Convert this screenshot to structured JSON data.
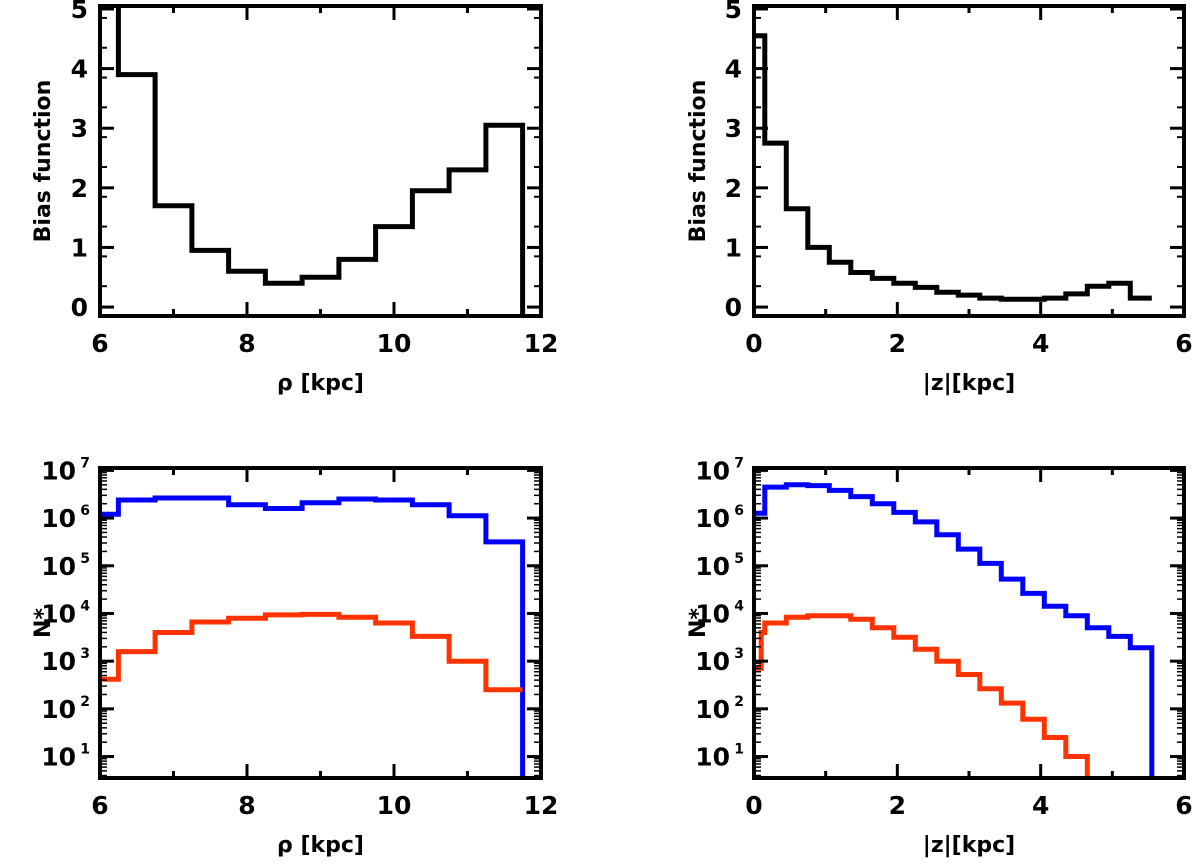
{
  "chart_data": [
    {
      "id": "panel-a",
      "type": "line",
      "style": "step",
      "xlabel": "ρ [kpc]",
      "ylabel": "Bias function",
      "xlim": [
        6,
        12
      ],
      "ylim": [
        -0.15,
        5.05
      ],
      "yscale": "linear",
      "xticks": [
        6,
        8,
        10,
        12
      ],
      "yticks": [
        0,
        1,
        2,
        3,
        4,
        5
      ],
      "series": [
        {
          "name": "bias",
          "color": "#000000",
          "edges": [
            6.25,
            6.75,
            7.25,
            7.75,
            8.25,
            8.75,
            9.25,
            9.75,
            10.25,
            10.75,
            11.25,
            11.75
          ],
          "values": [
            3.9,
            1.7,
            0.95,
            0.6,
            0.4,
            0.5,
            0.8,
            1.35,
            1.95,
            2.3,
            3.05
          ],
          "start": 5.05,
          "end": -0.15
        }
      ]
    },
    {
      "id": "panel-b",
      "type": "line",
      "style": "step",
      "xlabel": "|z|[kpc]",
      "ylabel": "Bias function",
      "xlim": [
        0,
        6
      ],
      "ylim": [
        -0.15,
        5.05
      ],
      "yscale": "linear",
      "xticks": [
        0,
        2,
        4,
        6
      ],
      "yticks": [
        0,
        1,
        2,
        3,
        4,
        5
      ],
      "series": [
        {
          "name": "bias",
          "color": "#000000",
          "edges": [
            0,
            0.15,
            0.45,
            0.75,
            1.05,
            1.35,
            1.65,
            1.95,
            2.25,
            2.55,
            2.85,
            3.15,
            3.45,
            3.75,
            4.05,
            4.35,
            4.65,
            4.95,
            5.25,
            5.55
          ],
          "values": [
            4.55,
            2.75,
            1.65,
            1.0,
            0.75,
            0.58,
            0.48,
            0.4,
            0.33,
            0.25,
            0.2,
            0.15,
            0.13,
            0.13,
            0.15,
            0.22,
            0.35,
            0.4,
            0.15
          ],
          "start": null,
          "end": null
        }
      ]
    },
    {
      "id": "panel-c",
      "type": "line",
      "style": "step",
      "xlabel": "ρ [kpc]",
      "ylabel": "N*",
      "xlim": [
        6,
        12
      ],
      "ylim_log10": [
        0.55,
        7.05
      ],
      "yscale": "log",
      "xticks": [
        6,
        8,
        10,
        12
      ],
      "yticks": [
        "10^7",
        "10^6",
        "10^5",
        "10^4",
        "10^3",
        "10^2",
        "10^1"
      ],
      "series": [
        {
          "name": "blue",
          "color": "#0000ff",
          "edges": [
            6,
            6.25,
            6.75,
            7.25,
            7.75,
            8.25,
            8.75,
            9.25,
            9.75,
            10.25,
            10.75,
            11.25,
            11.75
          ],
          "log_values": [
            6.08,
            6.38,
            6.42,
            6.42,
            6.28,
            6.2,
            6.32,
            6.4,
            6.38,
            6.28,
            6.05,
            5.5
          ],
          "start": null,
          "end": 0.55
        },
        {
          "name": "red",
          "color": "#ff3300",
          "edges": [
            6,
            6.25,
            6.75,
            7.25,
            7.75,
            8.25,
            8.75,
            9.25,
            9.75,
            10.25,
            10.75,
            11.25,
            11.75
          ],
          "log_values": [
            2.62,
            3.2,
            3.6,
            3.82,
            3.9,
            3.97,
            3.98,
            3.92,
            3.8,
            3.52,
            3.0,
            2.4
          ],
          "start": null,
          "end": null
        }
      ]
    },
    {
      "id": "panel-d",
      "type": "line",
      "style": "step",
      "xlabel": "|z|[kpc]",
      "ylabel": "N*",
      "xlim": [
        0,
        6
      ],
      "ylim_log10": [
        0.55,
        7.05
      ],
      "yscale": "log",
      "xticks": [
        0,
        2,
        4,
        6
      ],
      "yticks": [
        "10^7",
        "10^6",
        "10^5",
        "10^4",
        "10^3",
        "10^2",
        "10^1"
      ],
      "series": [
        {
          "name": "blue",
          "color": "#0000ff",
          "edges": [
            0,
            0.15,
            0.45,
            0.75,
            1.05,
            1.35,
            1.65,
            1.95,
            2.25,
            2.55,
            2.85,
            3.15,
            3.45,
            3.75,
            4.05,
            4.35,
            4.65,
            4.95,
            5.25,
            5.55
          ],
          "log_values": [
            6.1,
            6.65,
            6.7,
            6.68,
            6.58,
            6.45,
            6.3,
            6.12,
            5.92,
            5.65,
            5.35,
            5.05,
            4.72,
            4.42,
            4.15,
            3.95,
            3.7,
            3.52,
            3.28
          ],
          "start": null,
          "end": 0.55
        },
        {
          "name": "red",
          "color": "#ff3300",
          "edges": [
            0,
            0.1,
            0.15,
            0.45,
            0.75,
            1.05,
            1.35,
            1.65,
            1.95,
            2.25,
            2.55,
            2.85,
            3.15,
            3.45,
            3.75,
            4.05,
            4.35,
            4.65
          ],
          "log_values": [
            2.85,
            3.6,
            3.8,
            3.92,
            3.95,
            3.95,
            3.88,
            3.7,
            3.5,
            3.25,
            3.0,
            2.72,
            2.42,
            2.12,
            1.78,
            1.4,
            1.0
          ],
          "start": null,
          "end": 0.55
        }
      ]
    }
  ]
}
